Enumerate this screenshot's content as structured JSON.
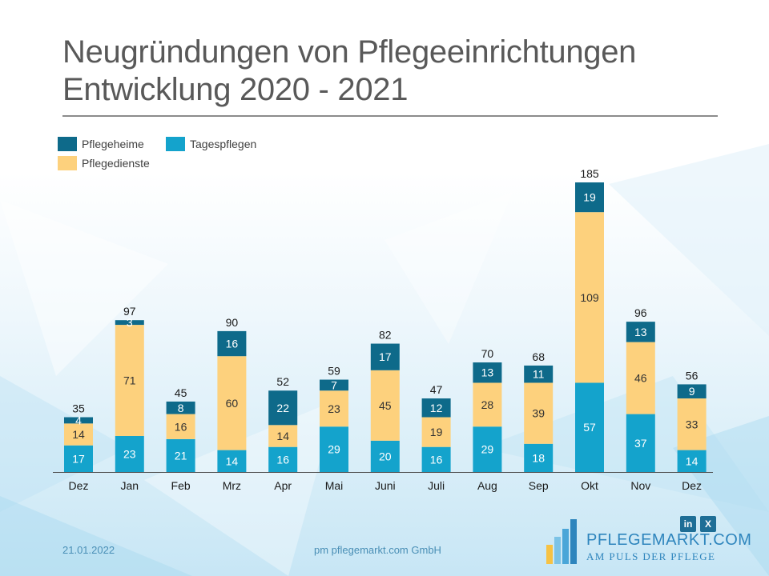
{
  "header": {
    "title_line1": "Neugründungen von Pflegeeinrichtungen",
    "title_line2": "Entwicklung 2020 - 2021"
  },
  "colors": {
    "pflegeheime": "#0e6a8a",
    "tagespflegen": "#14a3cc",
    "pflegedienste": "#fdd17d",
    "title": "#595959",
    "footer": "#4a8fb6"
  },
  "chart_data": {
    "type": "bar",
    "stacked": true,
    "title": "Neugründungen von Pflegeeinrichtungen Entwicklung 2020 - 2021",
    "xlabel": "",
    "ylabel": "",
    "ylim": [
      0,
      185
    ],
    "grid": false,
    "legend_position": "top-left",
    "categories": [
      "Dez",
      "Jan",
      "Feb",
      "Mrz",
      "Apr",
      "Mai",
      "Juni",
      "Juli",
      "Aug",
      "Sep",
      "Okt",
      "Nov",
      "Dez"
    ],
    "series": [
      {
        "name": "Tagespflegen",
        "color": "#14a3cc",
        "values": [
          17,
          23,
          21,
          14,
          16,
          29,
          20,
          16,
          29,
          18,
          57,
          37,
          14
        ]
      },
      {
        "name": "Pflegedienste",
        "color": "#fdd17d",
        "values": [
          14,
          71,
          16,
          60,
          14,
          23,
          45,
          19,
          28,
          39,
          109,
          46,
          33
        ]
      },
      {
        "name": "Pflegeheime",
        "color": "#0e6a8a",
        "values": [
          4,
          3,
          8,
          16,
          22,
          7,
          17,
          12,
          13,
          11,
          19,
          13,
          9
        ]
      }
    ],
    "totals": [
      35,
      97,
      45,
      90,
      52,
      59,
      82,
      47,
      70,
      68,
      185,
      96,
      56
    ]
  },
  "legend": {
    "pflegeheime": "Pflegeheime",
    "tagespflegen": "Tagespflegen",
    "pflegedienste": "Pflegedienste"
  },
  "footer": {
    "date": "21.01.2022",
    "company": "pm pflegemarkt.com GmbH",
    "logo_main": "PFLEGEMARKT.COM",
    "logo_sub": "AM PULS DER PFLEGE",
    "social_linkedin": "in",
    "social_xing": "X"
  }
}
